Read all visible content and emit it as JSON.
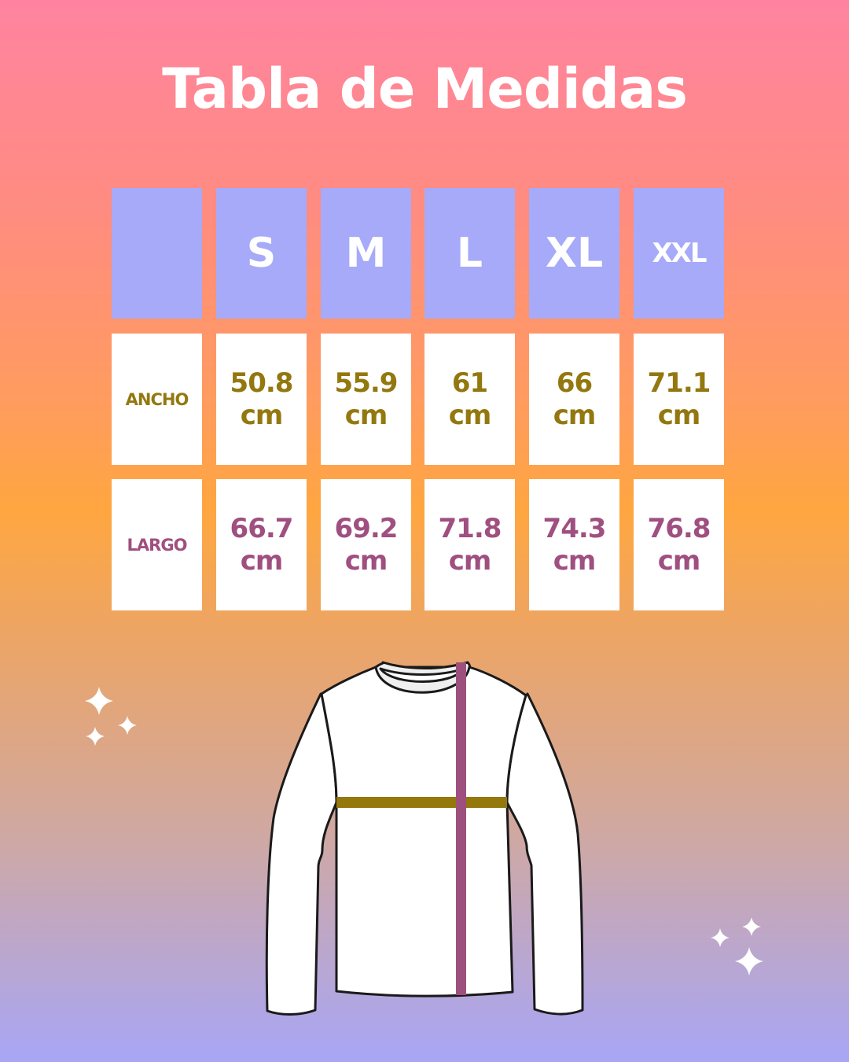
{
  "title": "Tabla de Medidas",
  "sizes": [
    "S",
    "M",
    "L",
    "XL",
    "XXL"
  ],
  "rows": [
    {
      "label": "ANCHO",
      "values": [
        "50.8",
        "55.9",
        "61",
        "66",
        "71.1"
      ],
      "unit": "cm",
      "color": "#93780f"
    },
    {
      "label": "LARGO",
      "values": [
        "66.7",
        "69.2",
        "71.8",
        "74.3",
        "76.8"
      ],
      "unit": "cm",
      "color": "#9f4f80"
    }
  ],
  "colors": {
    "header": "#a6aaf8",
    "ancho": "#93780f",
    "largo": "#9f4f80"
  },
  "illustration": {
    "garment": "long-sleeve-shirt",
    "icons": [
      "sparkle-icon"
    ]
  }
}
